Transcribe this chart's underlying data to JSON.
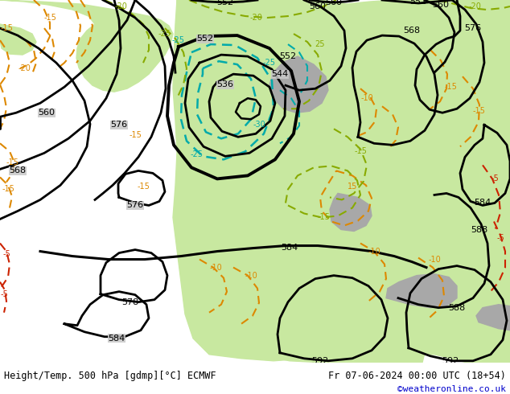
{
  "title_left": "Height/Temp. 500 hPa [gdmp][°C] ECMWF",
  "title_right": "Fr 07-06-2024 00:00 UTC (18+54)",
  "watermark": "©weatheronline.co.uk",
  "bg_ocean_color": "#c8c8c8",
  "bg_land_color": "#c8e8a0",
  "bg_mountain_color": "#a8a8a8",
  "bottom_bar_color": "#ffffff",
  "text_color_left": "#000000",
  "text_color_right": "#000000",
  "watermark_color": "#0000cc",
  "figsize": [
    6.34,
    4.9
  ],
  "dpi": 100
}
